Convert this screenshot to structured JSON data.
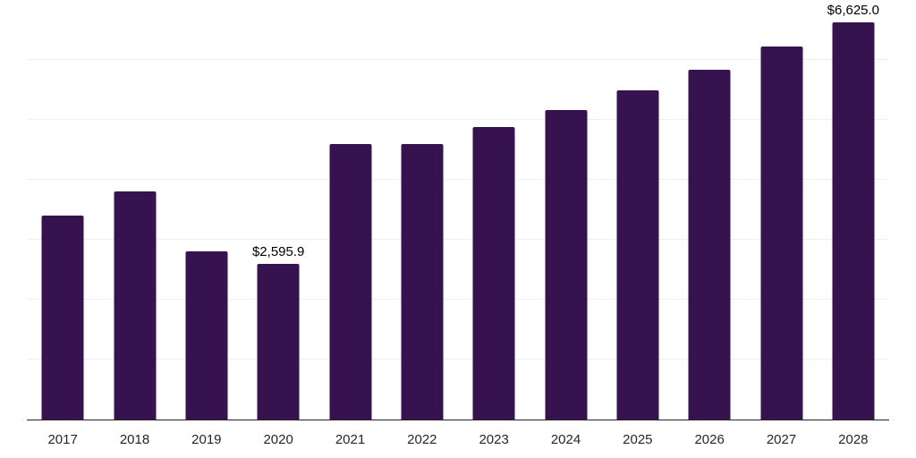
{
  "chart_data": {
    "type": "bar",
    "title": "",
    "xlabel": "",
    "ylabel": "",
    "categories": [
      "2017",
      "2018",
      "2019",
      "2020",
      "2021",
      "2022",
      "2023",
      "2024",
      "2025",
      "2026",
      "2027",
      "2028"
    ],
    "values": [
      3410,
      3810,
      2810,
      2595.9,
      4600,
      4590,
      4880,
      5170,
      5500,
      5840,
      6220,
      6625.0
    ],
    "data_labels": [
      {
        "category": "2020",
        "text": "$2,595.9"
      },
      {
        "category": "2028",
        "text": "$6,625.0"
      }
    ],
    "ylim": [
      0,
      7000
    ],
    "grid_interval": 1000,
    "grid": "horizontal-only",
    "legend": "none",
    "y_tick_labels_visible": false,
    "colors": {
      "bar": "#36134E",
      "gridline": "#f0f0f0",
      "axis_line": "#262626",
      "tick_label": "#262626",
      "data_label": "#000000",
      "background": "#ffffff"
    }
  }
}
